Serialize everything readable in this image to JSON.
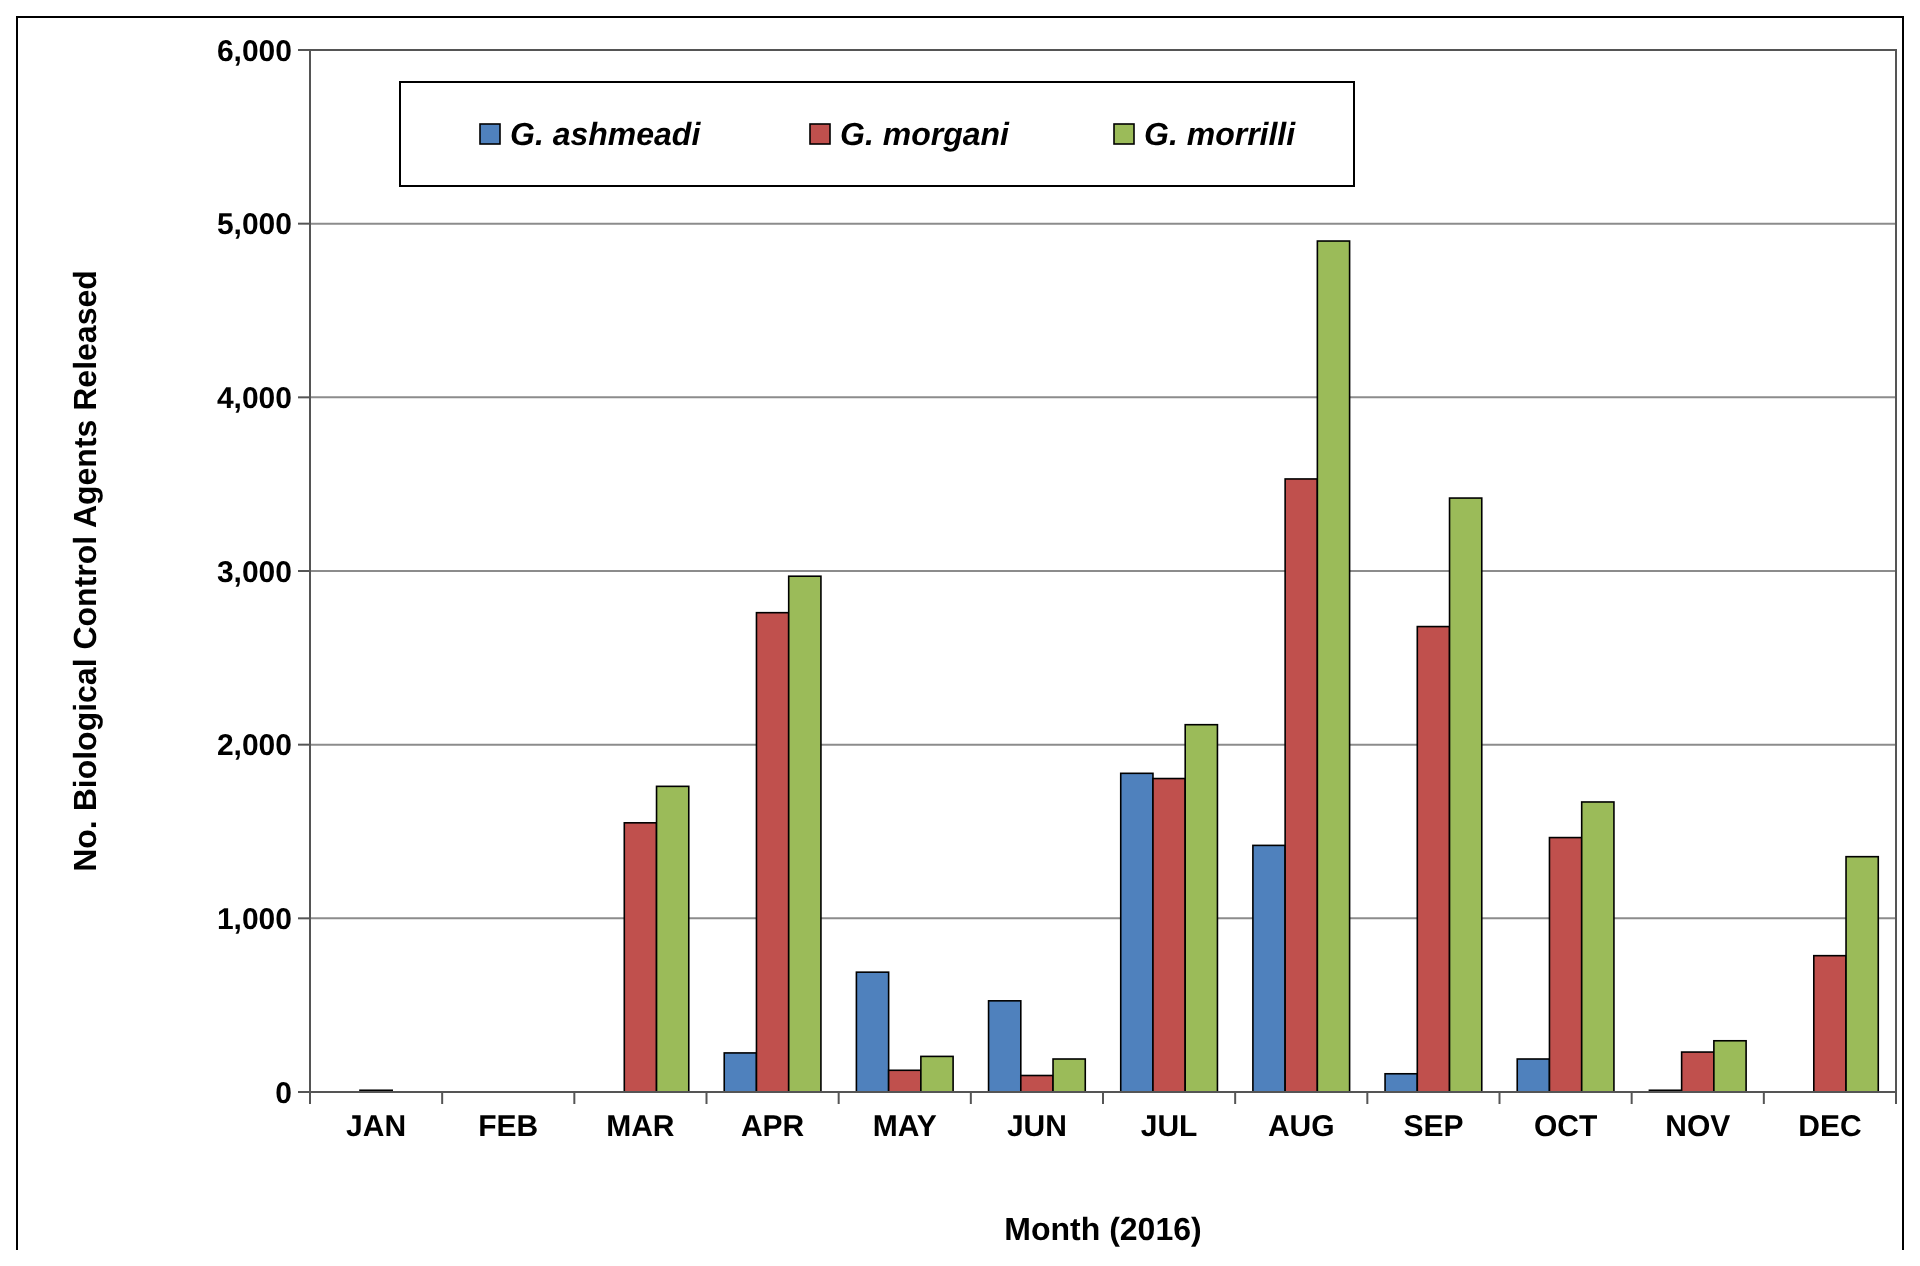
{
  "chart_data": {
    "type": "bar",
    "xlabel": "Month (2016)",
    "ylabel": "No. Biological Control Agents Released",
    "categories": [
      "JAN",
      "FEB",
      "MAR",
      "APR",
      "MAY",
      "JUN",
      "JUL",
      "AUG",
      "SEP",
      "OCT",
      "NOV",
      "DEC"
    ],
    "series": [
      {
        "name": "G. ashmeadi",
        "color": "#4f81bd",
        "values": [
          0,
          0,
          0,
          225,
          690,
          525,
          1835,
          1420,
          105,
          190,
          10,
          0
        ]
      },
      {
        "name": "G. morgani",
        "color": "#c0504d",
        "values": [
          10,
          0,
          1550,
          2760,
          125,
          95,
          1805,
          3530,
          2680,
          1465,
          230,
          785
        ]
      },
      {
        "name": "G. morrilli",
        "color": "#9bbb59",
        "values": [
          0,
          0,
          1760,
          2970,
          205,
          190,
          2115,
          4900,
          3420,
          1670,
          295,
          1355
        ]
      }
    ],
    "ylim": [
      0,
      6000
    ],
    "yticks": [
      {
        "value": 0,
        "label": "0"
      },
      {
        "value": 1000,
        "label": "1,000"
      },
      {
        "value": 2000,
        "label": "2,000"
      },
      {
        "value": 3000,
        "label": "3,000"
      },
      {
        "value": 4000,
        "label": "4,000"
      },
      {
        "value": 5000,
        "label": "5,000"
      },
      {
        "value": 6000,
        "label": "6,000"
      }
    ],
    "grid": "y",
    "legend": "top"
  }
}
